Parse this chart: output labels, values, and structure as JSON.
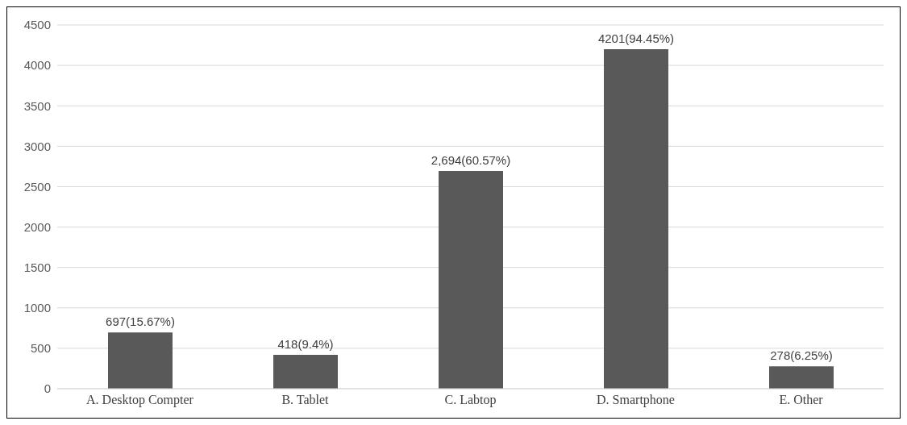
{
  "chart_data": {
    "type": "bar",
    "categories": [
      "A. Desktop Compter",
      "B. Tablet",
      "C. Labtop",
      "D. Smartphone",
      "E. Other"
    ],
    "values": [
      697,
      418,
      2694,
      4201,
      278
    ],
    "value_labels": [
      "697(15.67%)",
      "418(9.4%)",
      "2,694(60.57%)",
      "4201(94.45%)",
      "278(6.25%)"
    ],
    "color": "#595959",
    "ylim": [
      0,
      4500
    ],
    "yticks": [
      0,
      500,
      1000,
      1500,
      2000,
      2500,
      3000,
      3500,
      4000,
      4500
    ],
    "grid": "y"
  }
}
